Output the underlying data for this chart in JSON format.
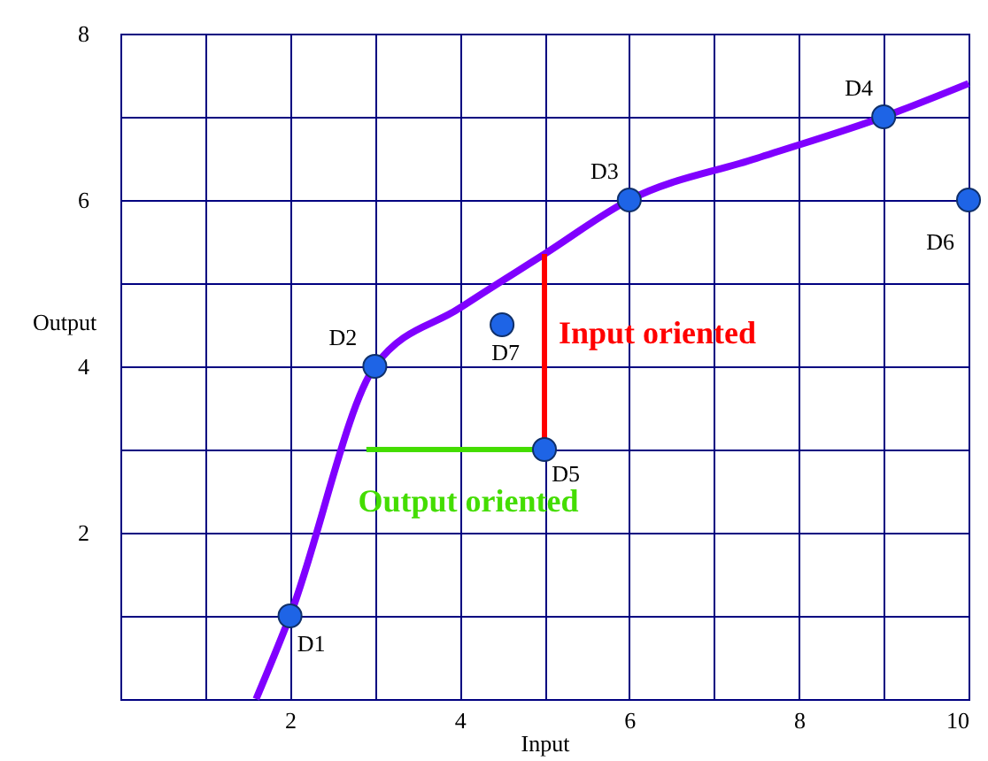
{
  "chart_data": {
    "type": "scatter",
    "xlabel": "Input",
    "ylabel": "Output",
    "xlim": [
      0,
      10
    ],
    "ylim": [
      0,
      8
    ],
    "xticks": [
      {
        "value": 1,
        "label": null
      },
      2,
      {
        "value": 3,
        "label": null
      },
      4,
      {
        "value": 5,
        "label": null
      },
      6,
      {
        "value": 7,
        "label": null
      },
      8,
      {
        "value": 9,
        "label": null
      },
      10
    ],
    "yticks": [
      {
        "value": 1,
        "label": null
      },
      2,
      {
        "value": 3,
        "label": null
      },
      4,
      {
        "value": 5,
        "label": null
      },
      6,
      {
        "value": 7,
        "label": null
      },
      8
    ],
    "grid": true,
    "series": [
      {
        "type": "line",
        "color": "#8000ff",
        "x": [
          1.6,
          2,
          3,
          4,
          5,
          6,
          7.5,
          9,
          10
        ],
        "values": [
          0,
          1,
          4,
          4.7,
          5.35,
          6,
          6.5,
          7,
          7.4
        ]
      },
      {
        "type": "line",
        "name": "Input oriented",
        "color": "#ff0000",
        "x": [
          5,
          5
        ],
        "values": [
          3,
          5.35
        ]
      },
      {
        "type": "line",
        "name": "Output oriented",
        "color": "#44dd00",
        "x": [
          5,
          2.9
        ],
        "values": [
          3,
          3
        ]
      },
      {
        "color": "#1e64e6",
        "x": [
          2,
          3,
          6,
          9,
          5,
          10,
          4.5
        ],
        "values": [
          1,
          4,
          6,
          7,
          3,
          6,
          4.5
        ],
        "value_labels": [
          "D1",
          "D2",
          "D3",
          "D4",
          "D5",
          "D6",
          "D7"
        ]
      }
    ]
  }
}
